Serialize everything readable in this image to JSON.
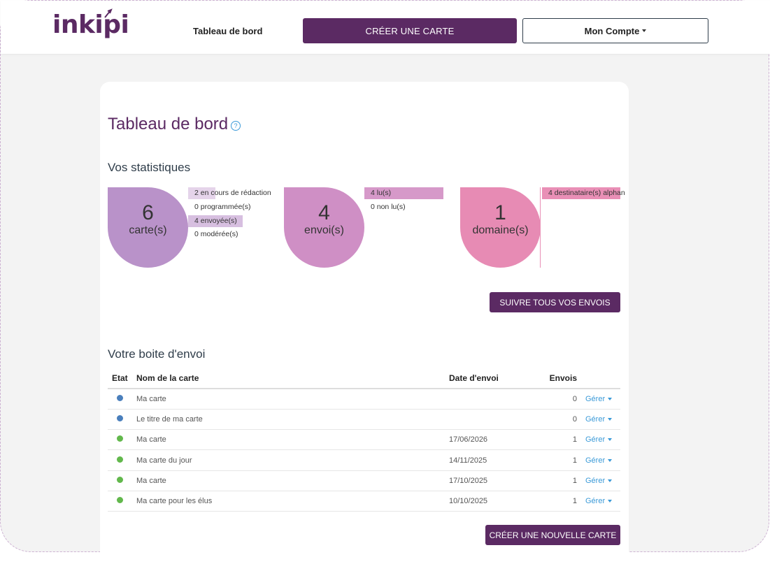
{
  "header": {
    "logo": "inkipi",
    "nav_dashboard": "Tableau de bord",
    "create_button": "CRÉER UNE CARTE",
    "account_button": "Mon Compte",
    "colors": {
      "brand": "#5b2a63",
      "link": "#3a9ad8"
    }
  },
  "page": {
    "title": "Tableau de bord",
    "help_icon": "?",
    "stats_title": "Vos statistiques",
    "outbox_title": "Votre boite d'envoi"
  },
  "stats": [
    {
      "number": "6",
      "unit": "carte(s)",
      "color": "#b992c9",
      "legend": [
        {
          "text": "2 en cours de rédaction",
          "fraction": 0.33,
          "color": "#e5d4ea"
        },
        {
          "text": "0 programmée(s)",
          "fraction": 0,
          "color": "#e5d4ea"
        },
        {
          "text": "4 envoyée(s)",
          "fraction": 0.67,
          "color": "#d7bfe0"
        },
        {
          "text": "0 modérée(s)",
          "fraction": 0,
          "color": "#e5d4ea"
        }
      ]
    },
    {
      "number": "4",
      "unit": "envoi(s)",
      "color": "#cf8fc5",
      "legend": [
        {
          "text": "4 lu(s)",
          "fraction": 1,
          "color": "#d699c9"
        },
        {
          "text": "0 non lu(s)",
          "fraction": 0,
          "color": "#d699c9"
        }
      ]
    },
    {
      "number": "1",
      "unit": "domaine(s)",
      "color": "#e78bb4",
      "legend": [
        {
          "text": "4 destinataire(s) alphan",
          "fraction": 1,
          "color": "#e98fb6"
        }
      ]
    }
  ],
  "follow_button": "SUIVRE TOUS VOS ENVOIS",
  "table": {
    "headers": [
      "Etat",
      "Nom de la carte",
      "Date d'envoi",
      "Envois",
      ""
    ],
    "rows": [
      {
        "state_color": "#4a7fbc",
        "name": "Ma carte",
        "date": "",
        "sends": "0",
        "action": "Gérer"
      },
      {
        "state_color": "#4a7fbc",
        "name": "Le titre de ma carte",
        "date": "",
        "sends": "0",
        "action": "Gérer"
      },
      {
        "state_color": "#62b84c",
        "name": "Ma carte",
        "date": "17/06/2026",
        "sends": "1",
        "action": "Gérer"
      },
      {
        "state_color": "#62b84c",
        "name": "Ma carte du jour",
        "date": "14/11/2025",
        "sends": "1",
        "action": "Gérer"
      },
      {
        "state_color": "#62b84c",
        "name": "Ma carte",
        "date": "17/10/2025",
        "sends": "1",
        "action": "Gérer"
      },
      {
        "state_color": "#62b84c",
        "name": "Ma carte pour les élus",
        "date": "10/10/2025",
        "sends": "1",
        "action": "Gérer"
      }
    ]
  },
  "new_card_button": "CRÉER UNE NOUVELLE CARTE"
}
